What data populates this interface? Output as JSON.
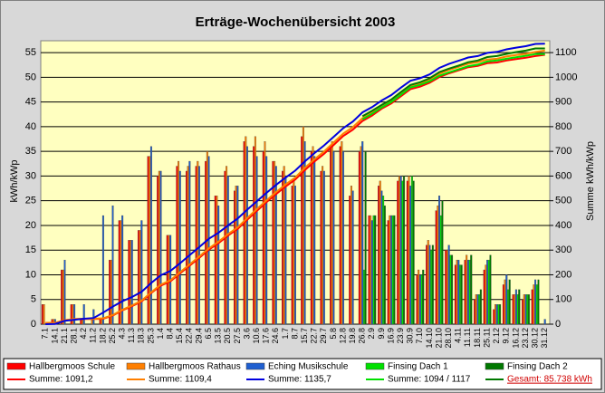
{
  "chart_data": {
    "type": "bar",
    "title": "Erträge-Wochenübersicht 2003",
    "y_label": "kWh/kWp",
    "y2_label": "Summe kWh/kWp",
    "categories": [
      "7.1",
      "14.1",
      "21.1",
      "28.1",
      "4.2",
      "11.2",
      "18.2",
      "25.2",
      "4.3",
      "11.3",
      "18.3",
      "25.3",
      "1.4",
      "8.4",
      "15.4",
      "22.4",
      "29.4",
      "6.5",
      "13.5",
      "20.5",
      "27.5",
      "3.6",
      "10.6",
      "17.6",
      "24.6",
      "1.7",
      "8.7",
      "15.7",
      "22.7",
      "29.7",
      "5.8",
      "12.8",
      "19.8",
      "26.8",
      "2.9",
      "9.9",
      "16.9",
      "23.9",
      "30.9",
      "7.10",
      "14.10",
      "21.10",
      "28.10",
      "4.11",
      "11.11",
      "18.11",
      "25.11",
      "2.12",
      "9.12",
      "16.12",
      "23.12",
      "30.12",
      "31.12"
    ],
    "ylim": [
      0,
      57.4
    ],
    "yticks": [
      0,
      5,
      10,
      15,
      20,
      25,
      30,
      35,
      40,
      45,
      50,
      55
    ],
    "y2lim": [
      0,
      1148
    ],
    "y2ticks": [
      0,
      100,
      200,
      300,
      400,
      500,
      600,
      700,
      800,
      900,
      1000,
      1100
    ],
    "grid": true,
    "series": [
      {
        "name": "Hallbergmoos Schule",
        "color": "#ff0000",
        "values": [
          4,
          1,
          11,
          4,
          1,
          0,
          1,
          13,
          21,
          17,
          19,
          34,
          30,
          18,
          32,
          31,
          32,
          33,
          26,
          31,
          27,
          37,
          36,
          35,
          33,
          31,
          28,
          38,
          35,
          31,
          36,
          36,
          26,
          35,
          22,
          28,
          21,
          29,
          29,
          10,
          16,
          23,
          15,
          12,
          13,
          5,
          11,
          3,
          8,
          6,
          5,
          7,
          0
        ]
      },
      {
        "name": "Hallbergmoos Rathaus",
        "color": "#ff7f00",
        "values": [
          4,
          1,
          11,
          4,
          1,
          1,
          1,
          13,
          21,
          17,
          19,
          34,
          31,
          18,
          33,
          32,
          33,
          35,
          26,
          32,
          28,
          38,
          38,
          37,
          33,
          32,
          29,
          40,
          36,
          32,
          37,
          37,
          28,
          36,
          22,
          29,
          22,
          30,
          30,
          11,
          17,
          24,
          15,
          13,
          14,
          6,
          12,
          4,
          9,
          6,
          6,
          8,
          0
        ]
      },
      {
        "name": "Eching Musikschule",
        "color": "#1f5fd0",
        "values": [
          0,
          1,
          13,
          4,
          4,
          3,
          22,
          24,
          22,
          17,
          21,
          36,
          31,
          18,
          31,
          33,
          32,
          34,
          24,
          30,
          28,
          36,
          34,
          34,
          32,
          30,
          28,
          37,
          34,
          31,
          35,
          35,
          27,
          37,
          21,
          27,
          22,
          30,
          28,
          10,
          16,
          26,
          16,
          13,
          13,
          6,
          13,
          4,
          10,
          7,
          6,
          9,
          1
        ]
      },
      {
        "name": "Finsing Dach 1",
        "color": "#00e000",
        "values": [
          null,
          null,
          null,
          null,
          null,
          null,
          null,
          null,
          null,
          null,
          null,
          null,
          null,
          null,
          null,
          null,
          null,
          null,
          null,
          null,
          null,
          null,
          null,
          null,
          null,
          null,
          null,
          null,
          null,
          null,
          null,
          null,
          null,
          11,
          22,
          26,
          22,
          29,
          30,
          10,
          15,
          22,
          14,
          12,
          13,
          6,
          13,
          4,
          7,
          6,
          6,
          8,
          0
        ]
      },
      {
        "name": "Finsing Dach 2",
        "color": "#007800",
        "values": [
          null,
          null,
          null,
          null,
          null,
          null,
          null,
          null,
          null,
          null,
          null,
          null,
          null,
          null,
          null,
          null,
          null,
          null,
          null,
          null,
          null,
          null,
          null,
          null,
          null,
          null,
          null,
          null,
          null,
          null,
          null,
          null,
          null,
          35,
          22,
          24,
          22,
          30,
          29,
          11,
          16,
          25,
          14,
          12,
          14,
          7,
          14,
          4,
          9,
          7,
          6,
          9,
          0
        ]
      }
    ],
    "lines": [
      {
        "name": "Summe: 1091,2",
        "color": "#ff0000",
        "axis": "y2",
        "values": [
          5,
          5,
          16,
          20,
          21,
          21,
          22,
          35,
          56,
          73,
          92,
          126,
          156,
          174,
          206,
          237,
          269,
          302,
          328,
          359,
          386,
          423,
          459,
          494,
          527,
          558,
          586,
          624,
          659,
          690,
          726,
          762,
          788,
          823,
          845,
          873,
          894,
          923,
          952,
          962,
          978,
          1001,
          1016,
          1028,
          1041,
          1046,
          1057,
          1060,
          1068,
          1074,
          1079,
          1086,
          1091
        ]
      },
      {
        "name": "Summe: 1109,4",
        "color": "#ff7f00",
        "axis": "y2",
        "values": [
          5,
          5,
          16,
          21,
          22,
          22,
          24,
          37,
          58,
          76,
          95,
          129,
          160,
          178,
          210,
          242,
          274,
          307,
          334,
          365,
          392,
          430,
          466,
          501,
          535,
          566,
          594,
          633,
          668,
          699,
          736,
          772,
          798,
          834,
          856,
          884,
          906,
          935,
          964,
          975,
          991,
          1014,
          1030,
          1042,
          1055,
          1061,
          1072,
          1075,
          1084,
          1090,
          1095,
          1103,
          1108
        ]
      },
      {
        "name": "Summe: 1135,7",
        "color": "#0000e0",
        "axis": "y2",
        "values": [
          0,
          1,
          14,
          18,
          22,
          25,
          47,
          71,
          93,
          110,
          131,
          167,
          198,
          216,
          247,
          280,
          312,
          346,
          370,
          400,
          428,
          464,
          498,
          532,
          564,
          594,
          622,
          659,
          693,
          724,
          759,
          794,
          821,
          858,
          879,
          906,
          928,
          958,
          986,
          996,
          1012,
          1038,
          1054,
          1067,
          1080,
          1086,
          1099,
          1103,
          1113,
          1120,
          1126,
          1135,
          1136
        ]
      },
      {
        "name": "Summe: 1094 / 1117",
        "color": "#00e000",
        "axis": "y2",
        "values": [
          null,
          null,
          null,
          null,
          null,
          null,
          null,
          null,
          null,
          null,
          null,
          null,
          null,
          null,
          null,
          null,
          null,
          null,
          null,
          null,
          null,
          null,
          null,
          null,
          null,
          null,
          null,
          null,
          null,
          null,
          null,
          null,
          null,
          830,
          852,
          878,
          900,
          929,
          959,
          969,
          984,
          1006,
          1020,
          1032,
          1045,
          1051,
          1064,
          1068,
          1075,
          1081,
          1087,
          1094,
          1094
        ]
      },
      {
        "name": "Gesamt: 85.738 kWh",
        "color": "#007800",
        "axis": "y2",
        "values": [
          null,
          null,
          null,
          null,
          null,
          null,
          null,
          null,
          null,
          null,
          null,
          null,
          null,
          null,
          null,
          null,
          null,
          null,
          null,
          null,
          null,
          null,
          null,
          null,
          null,
          null,
          null,
          null,
          null,
          null,
          null,
          null,
          null,
          842,
          864,
          888,
          910,
          940,
          969,
          980,
          996,
          1021,
          1035,
          1047,
          1061,
          1068,
          1082,
          1086,
          1095,
          1102,
          1108,
          1117,
          1117
        ]
      }
    ]
  }
}
